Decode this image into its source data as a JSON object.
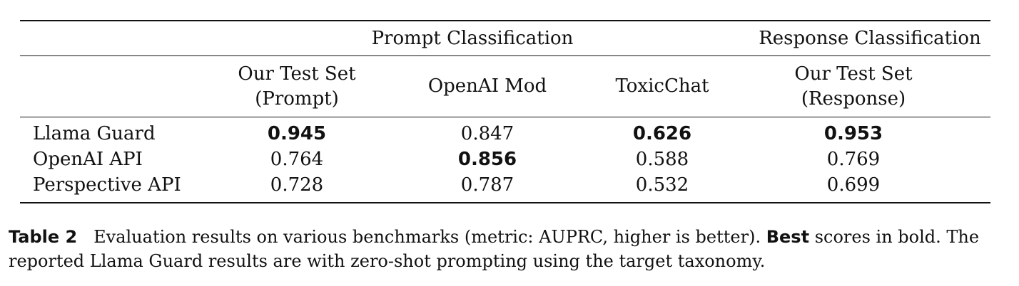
{
  "table": {
    "group_headers": {
      "prompt": "Prompt Classification",
      "response": "Response Classification"
    },
    "columns": [
      {
        "line1": "Our Test Set",
        "line2": "(Prompt)"
      },
      {
        "line1": "OpenAI Mod",
        "line2": ""
      },
      {
        "line1": "ToxicChat",
        "line2": ""
      },
      {
        "line1": "Our Test Set",
        "line2": "(Response)"
      }
    ],
    "rows": [
      {
        "label": "Llama Guard",
        "values": [
          "0.945",
          "0.847",
          "0.626",
          "0.953"
        ],
        "bold": [
          true,
          false,
          true,
          true
        ]
      },
      {
        "label": "OpenAI API",
        "values": [
          "0.764",
          "0.856",
          "0.588",
          "0.769"
        ],
        "bold": [
          false,
          true,
          false,
          false
        ]
      },
      {
        "label": "Perspective API",
        "values": [
          "0.728",
          "0.787",
          "0.532",
          "0.699"
        ],
        "bold": [
          false,
          false,
          false,
          false
        ]
      }
    ]
  },
  "caption": {
    "tag": "Table 2",
    "text_before_best": "Evaluation results on various benchmarks (metric: AUPRC, higher is better).",
    "best_word": "Best",
    "text_after_best": "scores in bold. The reported Llama Guard results are with zero-shot prompting using the target taxonomy."
  }
}
